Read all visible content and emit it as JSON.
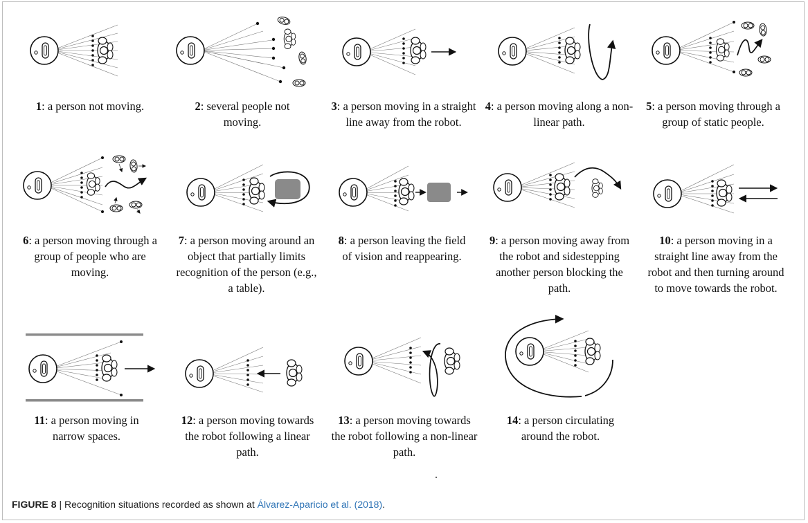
{
  "figure": {
    "label": "FIGURE 8",
    "separator": " | ",
    "caption_text": "Recognition situations recorded as shown at ",
    "caption_ref": "Álvarez-Aparicio et al. (2018)",
    "caption_end": "."
  },
  "situations": [
    {
      "num": "1",
      "text": ": a person not moving."
    },
    {
      "num": "2",
      "text": ": several people not moving."
    },
    {
      "num": "3",
      "text": ": a person moving in a straight line away from the robot."
    },
    {
      "num": "4",
      "text": ": a person moving along a non-linear path."
    },
    {
      "num": "5",
      "text": ": a person moving through a group of static people."
    },
    {
      "num": "6",
      "text": ": a person moving through a group of people who are moving."
    },
    {
      "num": "7",
      "text": ": a person moving around an object that partially limits recognition of the person (e.g., a table)."
    },
    {
      "num": "8",
      "text": ": a person leaving the field of vision and reappearing."
    },
    {
      "num": "9",
      "text": ": a person moving away from the robot and sidestepping another person blocking the path."
    },
    {
      "num": "10",
      "text": ": a person moving in a straight line away from the robot and then turning around to move towards the robot."
    },
    {
      "num": "11",
      "text": ": a person moving in narrow spaces."
    },
    {
      "num": "12",
      "text": ": a person moving towards the robot following a linear path."
    },
    {
      "num": "13",
      "text": ": a person moving towards the robot following a non-linear path."
    },
    {
      "num": "14",
      "text": ": a person circulating around the robot."
    }
  ]
}
